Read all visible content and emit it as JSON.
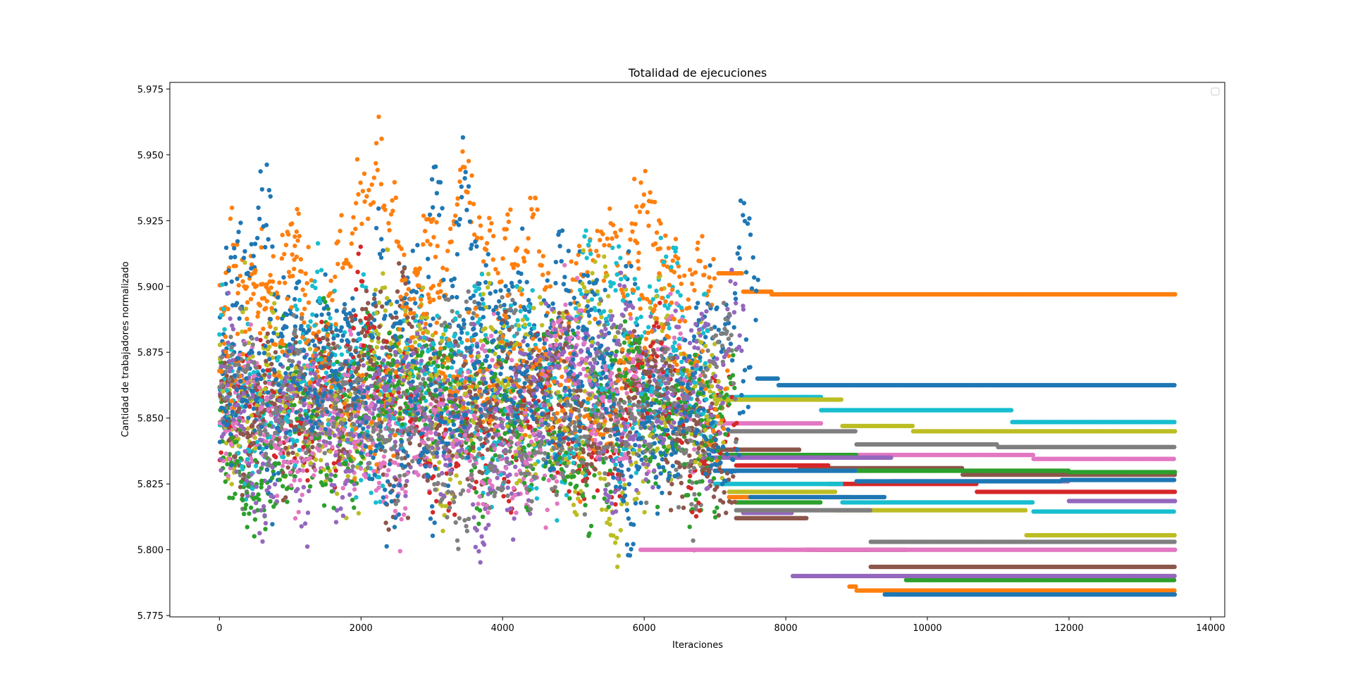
{
  "chart_data": {
    "type": "scatter",
    "title": "Totalidad de ejecuciones",
    "xlabel": "Iteraciones",
    "ylabel": "Cantidad de trabajadores normalizado",
    "xlim": [
      -700,
      14200
    ],
    "ylim": [
      5.7745,
      5.9775
    ],
    "x_ticks": [
      0,
      2000,
      4000,
      6000,
      8000,
      10000,
      12000,
      14000
    ],
    "y_ticks": [
      5.775,
      5.8,
      5.825,
      5.85,
      5.875,
      5.9,
      5.925,
      5.95,
      5.975
    ],
    "y_tick_labels": [
      "5.775",
      "5.800",
      "5.825",
      "5.850",
      "5.875",
      "5.900",
      "5.925",
      "5.950",
      "5.975"
    ],
    "legend": {
      "placement": "top-right",
      "entries": []
    },
    "grid": false,
    "colors": [
      "#1f77b4",
      "#ff7f0e",
      "#2ca02c",
      "#d62728",
      "#9467bd",
      "#8c564b",
      "#e377c2",
      "#7f7f7f",
      "#bcbd22",
      "#17becf"
    ],
    "series": [
      {
        "color": "#ff7f0e",
        "explore_end": 7000,
        "explore_center": 5.905,
        "explore_spread": 0.028,
        "plateaus": [
          [
            7050,
            5.905
          ],
          [
            7400,
            5.898
          ],
          [
            7800,
            5.897
          ],
          [
            10000,
            5.897
          ]
        ]
      },
      {
        "color": "#1f77b4",
        "explore_end": 7600,
        "explore_center": 5.88,
        "explore_spread": 0.035,
        "plateaus": [
          [
            7600,
            5.865
          ],
          [
            7900,
            5.8625
          ]
        ]
      },
      {
        "color": "#17becf",
        "explore_end": 6900,
        "explore_center": 5.88,
        "explore_spread": 0.03,
        "plateaus": [
          [
            7000,
            5.858
          ],
          [
            8500,
            5.853
          ],
          [
            11200,
            5.8485
          ]
        ]
      },
      {
        "color": "#bcbd22",
        "explore_end": 7000,
        "explore_center": 5.87,
        "explore_spread": 0.035,
        "plateaus": [
          [
            7000,
            5.857
          ],
          [
            8800,
            5.847
          ],
          [
            9800,
            5.845
          ]
        ]
      },
      {
        "color": "#7f7f7f",
        "explore_end": 7200,
        "explore_center": 5.865,
        "explore_spread": 0.03,
        "plateaus": [
          [
            7200,
            5.845
          ],
          [
            9000,
            5.84
          ],
          [
            11000,
            5.839
          ]
        ]
      },
      {
        "color": "#e377c2",
        "explore_end": 6900,
        "explore_center": 5.858,
        "explore_spread": 0.03,
        "plateaus": [
          [
            7000,
            5.848
          ],
          [
            8500,
            5.836
          ],
          [
            11500,
            5.8345
          ]
        ]
      },
      {
        "color": "#8c564b",
        "explore_end": 7000,
        "explore_center": 5.855,
        "explore_spread": 0.028,
        "plateaus": [
          [
            7000,
            5.838
          ],
          [
            8200,
            5.831
          ],
          [
            10500,
            5.8285
          ]
        ]
      },
      {
        "color": "#2ca02c",
        "explore_end": 7100,
        "explore_center": 5.855,
        "explore_spread": 0.03,
        "plateaus": [
          [
            7100,
            5.836
          ],
          [
            9000,
            5.83
          ],
          [
            12000,
            5.8295
          ]
        ]
      },
      {
        "color": "#d62728",
        "explore_end": 7300,
        "explore_center": 5.85,
        "explore_spread": 0.03,
        "plateaus": [
          [
            7300,
            5.832
          ],
          [
            8600,
            5.825
          ],
          [
            10700,
            5.822
          ]
        ]
      },
      {
        "color": "#9467bd",
        "explore_end": 7000,
        "explore_center": 5.86,
        "explore_spread": 0.03,
        "plateaus": [
          [
            7000,
            5.835
          ],
          [
            9500,
            5.826
          ],
          [
            12000,
            5.8185
          ]
        ]
      },
      {
        "color": "#1f77b4",
        "explore_end": 7000,
        "explore_center": 5.86,
        "explore_spread": 0.035,
        "plateaus": [
          [
            7000,
            5.83
          ],
          [
            9000,
            5.826
          ],
          [
            11900,
            5.8265
          ]
        ]
      },
      {
        "color": "#17becf",
        "explore_end": 7000,
        "explore_center": 5.855,
        "explore_spread": 0.03,
        "plateaus": [
          [
            7000,
            5.825
          ],
          [
            8800,
            5.818
          ],
          [
            11500,
            5.8145
          ]
        ]
      },
      {
        "color": "#bcbd22",
        "explore_end": 7200,
        "explore_center": 5.855,
        "explore_spread": 0.03,
        "plateaus": [
          [
            7200,
            5.822
          ],
          [
            8700,
            5.815
          ],
          [
            11400,
            5.8055
          ]
        ]
      },
      {
        "color": "#ff7f0e",
        "explore_end": 7200,
        "explore_center": 5.86,
        "explore_spread": 0.03,
        "plateaus": [
          [
            7200,
            5.82
          ],
          [
            8900,
            5.786
          ],
          [
            9000,
            5.7845
          ]
        ]
      },
      {
        "color": "#2ca02c",
        "explore_end": 7300,
        "explore_center": 5.85,
        "explore_spread": 0.028,
        "plateaus": [
          [
            7300,
            5.818
          ],
          [
            8500,
            5.8
          ],
          [
            9700,
            5.7885
          ]
        ]
      },
      {
        "color": "#8c564b",
        "explore_end": 7300,
        "explore_center": 5.85,
        "explore_spread": 0.028,
        "plateaus": [
          [
            7300,
            5.812
          ],
          [
            8300,
            5.8
          ],
          [
            9200,
            5.7935
          ]
        ]
      },
      {
        "color": "#e377c2",
        "explore_end": 5950,
        "explore_center": 5.855,
        "explore_spread": 0.03,
        "plateaus": [
          [
            5950,
            5.8
          ]
        ]
      },
      {
        "color": "#9467bd",
        "explore_end": 7400,
        "explore_center": 5.855,
        "explore_spread": 0.03,
        "plateaus": [
          [
            7400,
            5.814
          ],
          [
            8100,
            5.79
          ]
        ]
      },
      {
        "color": "#7f7f7f",
        "explore_end": 7300,
        "explore_center": 5.85,
        "explore_spread": 0.028,
        "plateaus": [
          [
            7300,
            5.815
          ],
          [
            9200,
            5.803
          ]
        ]
      },
      {
        "color": "#1f77b4",
        "explore_end": 7500,
        "explore_center": 5.85,
        "explore_spread": 0.03,
        "plateaus": [
          [
            7500,
            5.82
          ],
          [
            9400,
            5.783
          ]
        ]
      }
    ]
  }
}
